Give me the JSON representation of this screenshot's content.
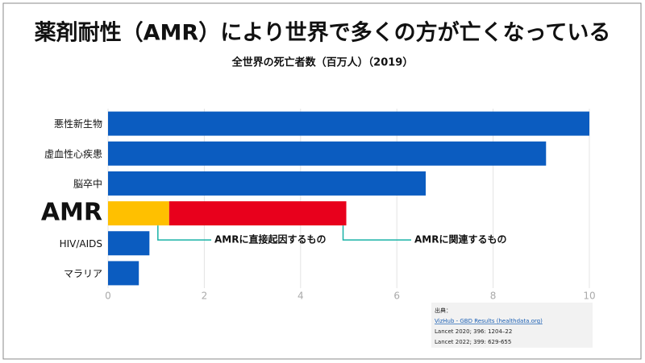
{
  "chart_data": {
    "type": "stacked-barh",
    "title": "薬剤耐性（AMR）により世界で多くの方が亡くなっている",
    "subtitle": "全世界の死亡者数（百万人）（2019）",
    "categories": [
      "悪性新生物",
      "虚血性心疾患",
      "脳卒中",
      "AMR",
      "HIV/AIDS",
      "マラリア"
    ],
    "values": [
      10,
      9.1,
      6.6,
      null,
      0.86,
      0.64
    ],
    "color": "#0b5cc0",
    "series": [
      {
        "name": "AMRに直接起因するもの",
        "color": "#ffc000",
        "values": [
          null,
          null,
          null,
          1.27,
          null,
          null
        ]
      },
      {
        "name": "AMRに関連するもの",
        "color": "#e8001c",
        "values": [
          null,
          null,
          null,
          3.68,
          null,
          null
        ]
      }
    ],
    "xlim": [
      0,
      10
    ],
    "xticks": [
      0,
      2,
      4,
      6,
      8,
      10
    ],
    "grid": true,
    "source": {
      "heading": "出典：",
      "link": "VizHub - GBD Results (healthdata.org)",
      "lines": [
        "Lancet 2020; 396: 1204–22",
        "Lancet 2022; 399:  629-655"
      ]
    }
  }
}
